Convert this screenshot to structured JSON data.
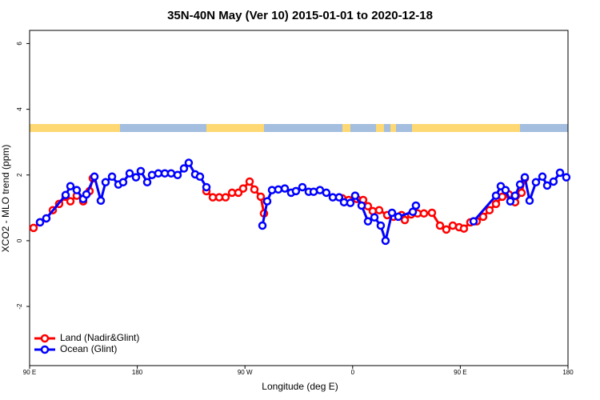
{
  "chart_data": {
    "type": "line",
    "title": "35N-40N May (Ver 10)   2015-01-01 to 2020-12-18",
    "x_label": "Longitude (deg E)",
    "y_label": "XCO2 - MLO trend (ppm)",
    "xlim": [
      90,
      540
    ],
    "xticks": [
      {
        "value": 90,
        "label": "90 E"
      },
      180,
      {
        "value": 270,
        "label": "90 W"
      },
      {
        "value": 360,
        "label": "0"
      },
      {
        "value": 450,
        "label": "90 E"
      },
      {
        "value": 540,
        "label": "180"
      }
    ],
    "ylim": [
      -3.8,
      6.4
    ],
    "yticks": [
      6,
      4,
      2,
      0,
      -2
    ],
    "legend": "bottom-left",
    "series": [
      {
        "name": "Land (Nadir&Glint)",
        "color": "#ff0000",
        "x": [
          93.3,
          98.7,
          104,
          109.4,
          114.7,
          120.1,
          124.1,
          129.4,
          134.8,
          140.1,
          142.8,
          190,
          237.8,
          243.1,
          248.5,
          253.8,
          259.2,
          264.5,
          268.5,
          273.9,
          277.9,
          283.2,
          285.9,
          318,
          351.4,
          356.8,
          363.5,
          368.8,
          372.8,
          376.8,
          382.2,
          388.9,
          394.2,
          400.9,
          403.6,
          408.9,
          414.3,
          419.6,
          426.3,
          433,
          438.3,
          443.7,
          449,
          453,
          458.4,
          463.7,
          469.1,
          474.4,
          479.8,
          485.1,
          490.5,
          495.8,
          501.2,
          503.9
        ],
        "values": [
          0.39,
          0.56,
          0.68,
          0.93,
          1.12,
          1.34,
          1.2,
          1.37,
          1.2,
          1.51,
          1.9,
          null,
          1.51,
          1.32,
          1.32,
          1.32,
          1.46,
          1.46,
          1.59,
          1.8,
          1.56,
          1.34,
          0.83,
          null,
          1.29,
          1.24,
          1.27,
          1.24,
          1.05,
          0.9,
          0.93,
          0.78,
          0.73,
          0.78,
          0.63,
          0.8,
          0.83,
          0.83,
          0.85,
          0.46,
          0.34,
          0.46,
          0.41,
          0.37,
          0.56,
          0.59,
          0.73,
          0.93,
          1.12,
          1.34,
          1.41,
          1.17,
          1.46,
          1.9
        ]
      },
      {
        "name": "Ocean (Glint)",
        "color": "#0000ff",
        "x": [
          98.7,
          104,
          120.1,
          124.1,
          129.4,
          134.8,
          137.5,
          144.2,
          149.5,
          153.5,
          158.9,
          164.2,
          168.2,
          173.6,
          178.9,
          182.9,
          188.3,
          192.3,
          197.6,
          203,
          208.3,
          213.7,
          219,
          223,
          228.4,
          232.4,
          237.8,
          260,
          284.6,
          288.6,
          292.6,
          297.9,
          303.3,
          308.6,
          312.6,
          318,
          323.3,
          327.4,
          332.7,
          338,
          343.4,
          348.7,
          352.8,
          358.1,
          362.1,
          367.5,
          372.8,
          378.2,
          383.5,
          387.5,
          392.9,
          398.2,
          410.3,
          412.9,
          437,
          461.1,
          479.8,
          483.8,
          487.8,
          491.8,
          495.8,
          499.9,
          503.9,
          507.9,
          513.2,
          518.6,
          522.6,
          527.9,
          533.3,
          538.6
        ],
        "values": [
          0.56,
          0.68,
          1.39,
          1.66,
          1.54,
          1.27,
          1.41,
          1.95,
          1.22,
          1.78,
          1.95,
          1.71,
          1.78,
          2.05,
          1.93,
          2.12,
          1.78,
          2.0,
          2.05,
          2.05,
          2.05,
          2.0,
          2.2,
          2.37,
          2.02,
          1.95,
          1.63,
          null,
          0.46,
          1.2,
          1.54,
          1.56,
          1.59,
          1.46,
          1.51,
          1.63,
          1.49,
          1.49,
          1.54,
          1.46,
          1.32,
          1.32,
          1.17,
          1.15,
          1.37,
          1.07,
          0.59,
          0.71,
          0.46,
          0,
          0.85,
          0.73,
          0.88,
          1.07,
          null,
          0.59,
          1.37,
          1.66,
          1.54,
          1.2,
          1.37,
          1.71,
          1.93,
          1.22,
          1.78,
          1.95,
          1.68,
          1.8,
          2.07,
          1.93
        ]
      }
    ]
  }
}
